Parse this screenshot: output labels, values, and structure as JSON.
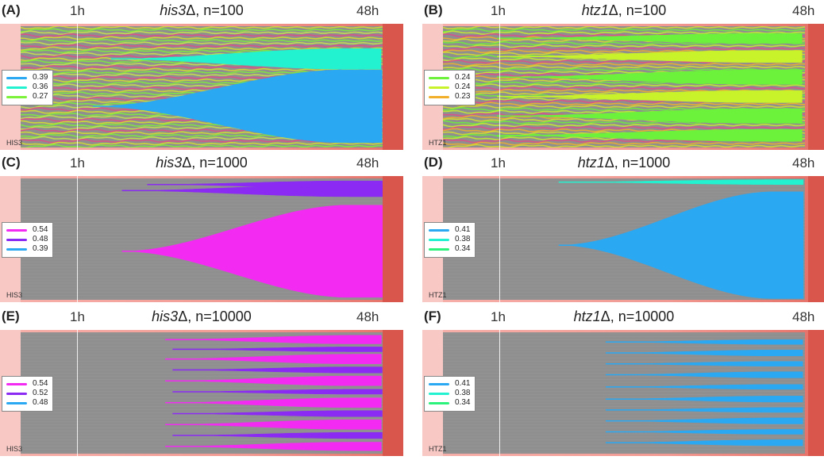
{
  "chart_data": [
    {
      "type": "area",
      "panel": "(A)",
      "title_gene": "his3",
      "title_rest": "Δ, n=100",
      "time_start": "1h",
      "time_end": "48h",
      "gene_label": "HIS3",
      "legend": [
        {
          "value": "0.39",
          "color": "#2aa8f2"
        },
        {
          "value": "0.36",
          "color": "#22f2d0"
        },
        {
          "value": "0.27",
          "color": "#7cf23a"
        }
      ],
      "background": "#8f8f8f",
      "stream_colors": [
        "#d7e32a",
        "#7cf23a",
        "#c9e84a",
        "#e34a8a"
      ],
      "clones": [
        {
          "color": "#22f2d0",
          "center": 0.27,
          "start_x": 0.25,
          "final_size": 0.17
        },
        {
          "color": "#2aa8f2",
          "center": 0.66,
          "start_x": 0.2,
          "final_size": 0.6
        }
      ]
    },
    {
      "type": "area",
      "panel": "(B)",
      "title_gene": "htz1",
      "title_rest": "Δ, n=100",
      "time_start": "1h",
      "time_end": "48h",
      "gene_label": "HTZ1",
      "legend": [
        {
          "value": "0.24",
          "color": "#6cf23a"
        },
        {
          "value": "0.24",
          "color": "#c8f22a"
        },
        {
          "value": "0.23",
          "color": "#f2b02a"
        }
      ],
      "background": "#8f8f8f",
      "stream_colors": [
        "#d7e32a",
        "#6cf23a",
        "#c8f22a",
        "#e34a8a",
        "#f2b02a"
      ],
      "clones": [
        {
          "color": "#6cf23a",
          "center": 0.1,
          "start_x": 0.15,
          "final_size": 0.08
        },
        {
          "color": "#c8f22a",
          "center": 0.25,
          "start_x": 0.15,
          "final_size": 0.1
        },
        {
          "color": "#6cf23a",
          "center": 0.42,
          "start_x": 0.15,
          "final_size": 0.12
        },
        {
          "color": "#c8f22a",
          "center": 0.58,
          "start_x": 0.15,
          "final_size": 0.1
        },
        {
          "color": "#6cf23a",
          "center": 0.74,
          "start_x": 0.15,
          "final_size": 0.12
        },
        {
          "color": "#6cf23a",
          "center": 0.9,
          "start_x": 0.15,
          "final_size": 0.1
        }
      ]
    },
    {
      "type": "area",
      "panel": "(C)",
      "title_gene": "his3",
      "title_rest": "Δ, n=1000",
      "time_start": "1h",
      "time_end": "48h",
      "gene_label": "HIS3",
      "legend": [
        {
          "value": "0.54",
          "color": "#f22af2"
        },
        {
          "value": "0.48",
          "color": "#8a2af2"
        },
        {
          "value": "0.39",
          "color": "#2aa8f2"
        }
      ],
      "background": "#8f8f8f",
      "stream_colors": [],
      "clones": [
        {
          "color": "#8a2af2",
          "center": 0.1,
          "start_x": 0.28,
          "final_size": 0.1
        },
        {
          "color": "#8a2af2",
          "center": 0.05,
          "start_x": 0.35,
          "final_size": 0.06
        },
        {
          "color": "#f22af2",
          "center": 0.6,
          "start_x": 0.28,
          "final_size": 0.76
        }
      ]
    },
    {
      "type": "area",
      "panel": "(D)",
      "title_gene": "htz1",
      "title_rest": "Δ, n=1000",
      "time_start": "1h",
      "time_end": "48h",
      "gene_label": "HTZ1",
      "legend": [
        {
          "value": "0.41",
          "color": "#2aa8f2"
        },
        {
          "value": "0.38",
          "color": "#22f2d0"
        },
        {
          "value": "0.34",
          "color": "#2af27a"
        }
      ],
      "background": "#8f8f8f",
      "stream_colors": [],
      "clones": [
        {
          "color": "#22f2d0",
          "center": 0.03,
          "start_x": 0.32,
          "final_size": 0.04
        },
        {
          "color": "#2aa8f2",
          "center": 0.55,
          "start_x": 0.32,
          "final_size": 0.88
        }
      ]
    },
    {
      "type": "area",
      "panel": "(E)",
      "title_gene": "his3",
      "title_rest": "Δ, n=10000",
      "time_start": "1h",
      "time_end": "48h",
      "gene_label": "HIS3",
      "legend": [
        {
          "value": "0.54",
          "color": "#f22af2"
        },
        {
          "value": "0.52",
          "color": "#8a2af2"
        },
        {
          "value": "0.48",
          "color": "#2aa8f2"
        }
      ],
      "background": "#8f8f8f",
      "stream_colors": [],
      "clones": [
        {
          "color": "#f22af2",
          "center": 0.06,
          "start_x": 0.4,
          "final_size": 0.07
        },
        {
          "color": "#8a2af2",
          "center": 0.14,
          "start_x": 0.42,
          "final_size": 0.04
        },
        {
          "color": "#f22af2",
          "center": 0.22,
          "start_x": 0.4,
          "final_size": 0.08
        },
        {
          "color": "#8a2af2",
          "center": 0.31,
          "start_x": 0.42,
          "final_size": 0.05
        },
        {
          "color": "#f22af2",
          "center": 0.4,
          "start_x": 0.4,
          "final_size": 0.08
        },
        {
          "color": "#8a2af2",
          "center": 0.49,
          "start_x": 0.42,
          "final_size": 0.04
        },
        {
          "color": "#f22af2",
          "center": 0.58,
          "start_x": 0.4,
          "final_size": 0.08
        },
        {
          "color": "#8a2af2",
          "center": 0.67,
          "start_x": 0.42,
          "final_size": 0.05
        },
        {
          "color": "#f22af2",
          "center": 0.76,
          "start_x": 0.4,
          "final_size": 0.08
        },
        {
          "color": "#8a2af2",
          "center": 0.85,
          "start_x": 0.42,
          "final_size": 0.05
        },
        {
          "color": "#f22af2",
          "center": 0.94,
          "start_x": 0.4,
          "final_size": 0.07
        }
      ]
    },
    {
      "type": "area",
      "panel": "(F)",
      "title_gene": "htz1",
      "title_rest": "Δ, n=10000",
      "time_start": "1h",
      "time_end": "48h",
      "gene_label": "HTZ1",
      "legend": [
        {
          "value": "0.41",
          "color": "#2aa8f2"
        },
        {
          "value": "0.38",
          "color": "#22f2d0"
        },
        {
          "value": "0.34",
          "color": "#2af27a"
        }
      ],
      "background": "#8f8f8f",
      "stream_colors": [],
      "clones": [
        {
          "color": "#2aa8f2",
          "center": 0.08,
          "start_x": 0.45,
          "final_size": 0.04
        },
        {
          "color": "#2aa8f2",
          "center": 0.17,
          "start_x": 0.45,
          "final_size": 0.05
        },
        {
          "color": "#2aa8f2",
          "center": 0.26,
          "start_x": 0.45,
          "final_size": 0.04
        },
        {
          "color": "#2aa8f2",
          "center": 0.35,
          "start_x": 0.45,
          "final_size": 0.05
        },
        {
          "color": "#2aa8f2",
          "center": 0.45,
          "start_x": 0.45,
          "final_size": 0.04
        },
        {
          "color": "#2aa8f2",
          "center": 0.55,
          "start_x": 0.45,
          "final_size": 0.05
        },
        {
          "color": "#2aa8f2",
          "center": 0.64,
          "start_x": 0.45,
          "final_size": 0.04
        },
        {
          "color": "#2aa8f2",
          "center": 0.73,
          "start_x": 0.45,
          "final_size": 0.05
        },
        {
          "color": "#2aa8f2",
          "center": 0.82,
          "start_x": 0.45,
          "final_size": 0.04
        },
        {
          "color": "#2aa8f2",
          "center": 0.91,
          "start_x": 0.45,
          "final_size": 0.05
        }
      ]
    }
  ]
}
